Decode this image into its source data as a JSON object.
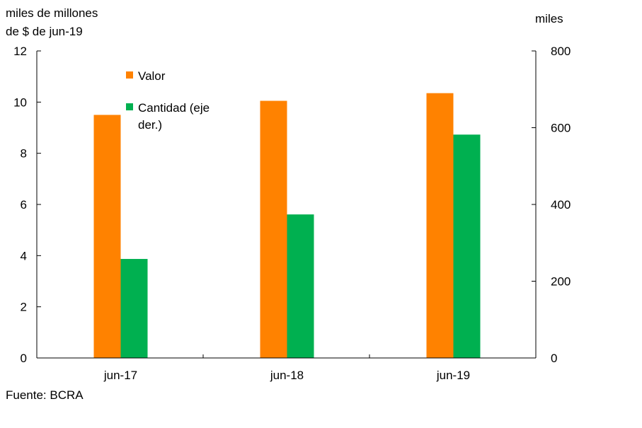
{
  "chart_data": {
    "type": "bar",
    "categories": [
      "jun-17",
      "jun-18",
      "jun-19"
    ],
    "series": [
      {
        "name": "Valor",
        "axis": "left",
        "color": "#FF8200",
        "values": [
          9.5,
          10.05,
          10.35
        ]
      },
      {
        "name": "Cantidad (eje der.)",
        "axis": "right",
        "color": "#00B050",
        "values": [
          258,
          374,
          582
        ]
      }
    ],
    "left_axis": {
      "label_line1": "miles de millones",
      "label_line2": "de $ de jun-19",
      "min": 0,
      "max": 12,
      "ticks": [
        "0",
        "2",
        "4",
        "6",
        "8",
        "10",
        "12"
      ]
    },
    "right_axis": {
      "label": "miles",
      "min": 0,
      "max": 800,
      "ticks": [
        "0",
        "200",
        "400",
        "600",
        "800"
      ]
    },
    "legend": {
      "position": "top-left",
      "items": [
        {
          "label": "Valor",
          "color": "#FF8200"
        },
        {
          "label_line1": "Cantidad (eje",
          "label_line2": "der.)",
          "color": "#00B050"
        }
      ]
    },
    "grid": false
  },
  "source_text": "Fuente: BCRA"
}
